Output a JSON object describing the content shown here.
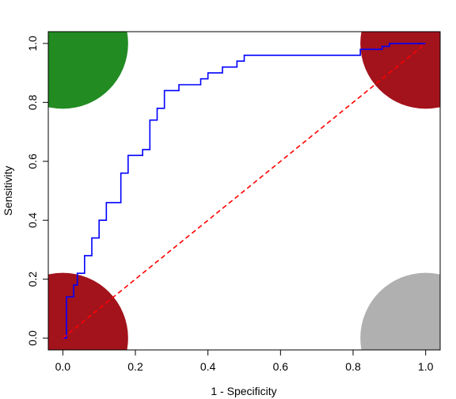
{
  "chart_data": {
    "type": "line",
    "title": "",
    "xlabel": "1 - Specificity",
    "ylabel": "Sensitivity",
    "xlim": [
      -0.04,
      1.04
    ],
    "ylim": [
      -0.04,
      1.04
    ],
    "x_ticks": [
      0.0,
      0.2,
      0.4,
      0.6,
      0.8,
      1.0
    ],
    "x_tick_labels": [
      "0.0",
      "0.2",
      "0.4",
      "0.6",
      "0.8",
      "1.0"
    ],
    "y_ticks": [
      0.0,
      0.2,
      0.4,
      0.6,
      0.8,
      1.0
    ],
    "y_tick_labels": [
      "0.0",
      "0.2",
      "0.4",
      "0.6",
      "0.8",
      "1.0"
    ],
    "grid": false,
    "legend": "none",
    "series": [
      {
        "color": "#0000ff",
        "style": "step",
        "x": [
          0.0,
          0.01,
          0.01,
          0.03,
          0.03,
          0.04,
          0.04,
          0.06,
          0.06,
          0.08,
          0.08,
          0.1,
          0.1,
          0.12,
          0.12,
          0.16,
          0.16,
          0.18,
          0.18,
          0.22,
          0.22,
          0.24,
          0.24,
          0.26,
          0.26,
          0.28,
          0.28,
          0.32,
          0.32,
          0.38,
          0.38,
          0.4,
          0.4,
          0.44,
          0.44,
          0.48,
          0.48,
          0.5,
          0.5,
          0.76,
          0.76,
          0.82,
          0.82,
          0.88,
          0.88,
          0.9,
          0.9,
          1.0
        ],
        "y": [
          0.0,
          0.0,
          0.14,
          0.14,
          0.18,
          0.18,
          0.22,
          0.22,
          0.28,
          0.28,
          0.34,
          0.34,
          0.4,
          0.4,
          0.46,
          0.46,
          0.56,
          0.56,
          0.62,
          0.62,
          0.64,
          0.64,
          0.74,
          0.74,
          0.78,
          0.78,
          0.84,
          0.84,
          0.86,
          0.86,
          0.88,
          0.88,
          0.9,
          0.9,
          0.92,
          0.92,
          0.94,
          0.94,
          0.96,
          0.96,
          0.96,
          0.96,
          0.98,
          0.98,
          0.99,
          0.99,
          1.0,
          1.0
        ]
      },
      {
        "color": "#ff0000",
        "style": "dashed",
        "x": [
          0.0,
          1.0
        ],
        "y": [
          0.0,
          1.0
        ]
      }
    ],
    "corner_markers": [
      {
        "corner": "top-left",
        "x": 0.0,
        "y": 1.0,
        "radius": 0.18,
        "color": "#228b22"
      },
      {
        "corner": "top-right",
        "x": 1.0,
        "y": 1.0,
        "radius": 0.18,
        "color": "#a3131c"
      },
      {
        "corner": "bottom-left",
        "x": 0.0,
        "y": 0.0,
        "radius": 0.18,
        "color": "#a3131c"
      },
      {
        "corner": "bottom-right",
        "x": 1.0,
        "y": 0.0,
        "radius": 0.18,
        "color": "#b0b0b0"
      }
    ]
  }
}
